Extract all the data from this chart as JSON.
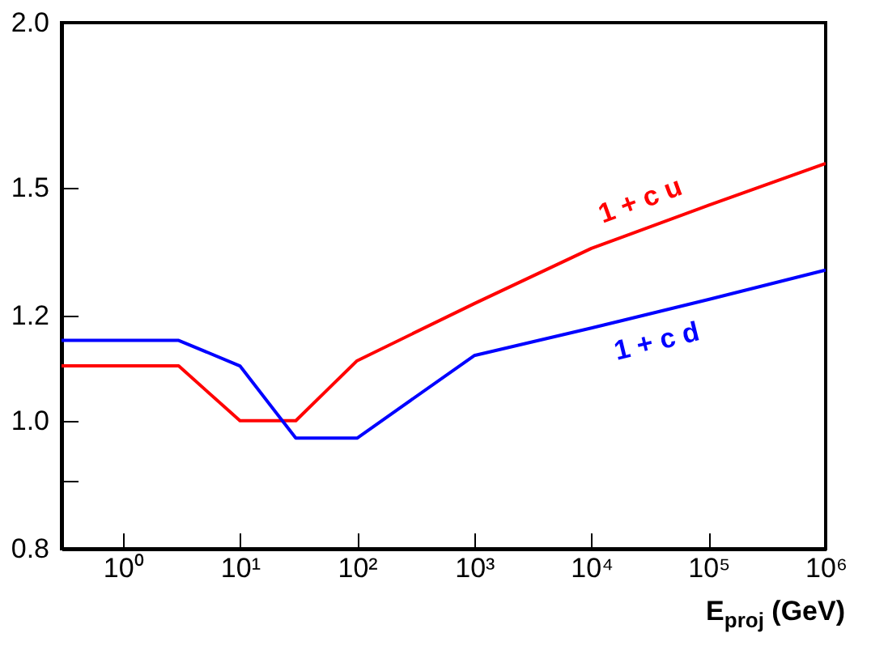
{
  "chart_data": {
    "type": "line",
    "xlabel": "E$_{proj}$ (GeV)",
    "log": "xy",
    "x": [
      0.3,
      3,
      10,
      30,
      100,
      1000,
      10000,
      100000,
      1000000
    ],
    "series": [
      {
        "name": "1 + c u",
        "color": "#ff0000",
        "values": [
          1.1,
          1.1,
          1.0,
          1.0,
          1.11,
          1.226,
          1.35,
          1.455,
          1.565
        ]
      },
      {
        "name": "1 + c d",
        "color": "#0000ff",
        "values": [
          1.15,
          1.15,
          1.1,
          0.97,
          0.97,
          1.12,
          1.175,
          1.235,
          1.3
        ]
      }
    ],
    "xlim": [
      0.3,
      1000000
    ],
    "xticks": [
      {
        "value": 1,
        "label": "10⁰"
      },
      {
        "value": 10,
        "label": "10¹"
      },
      {
        "value": 100,
        "label": "10²"
      },
      {
        "value": 1000,
        "label": "10³"
      },
      {
        "value": 10000,
        "label": "10⁴"
      },
      {
        "value": 100000,
        "label": "10⁵"
      },
      {
        "value": 1000000,
        "label": "10⁶"
      }
    ],
    "ylim": [
      0.8,
      2.0
    ],
    "yticks": [
      0.8,
      {
        "value": 0.9,
        "label": null
      },
      {
        "value": 1.0,
        "label": "1.0"
      },
      1.2,
      1.5,
      {
        "value": 2.0,
        "label": "2.0"
      }
    ],
    "grid": false,
    "legend": false,
    "line_style": "solid",
    "marker": "none"
  }
}
